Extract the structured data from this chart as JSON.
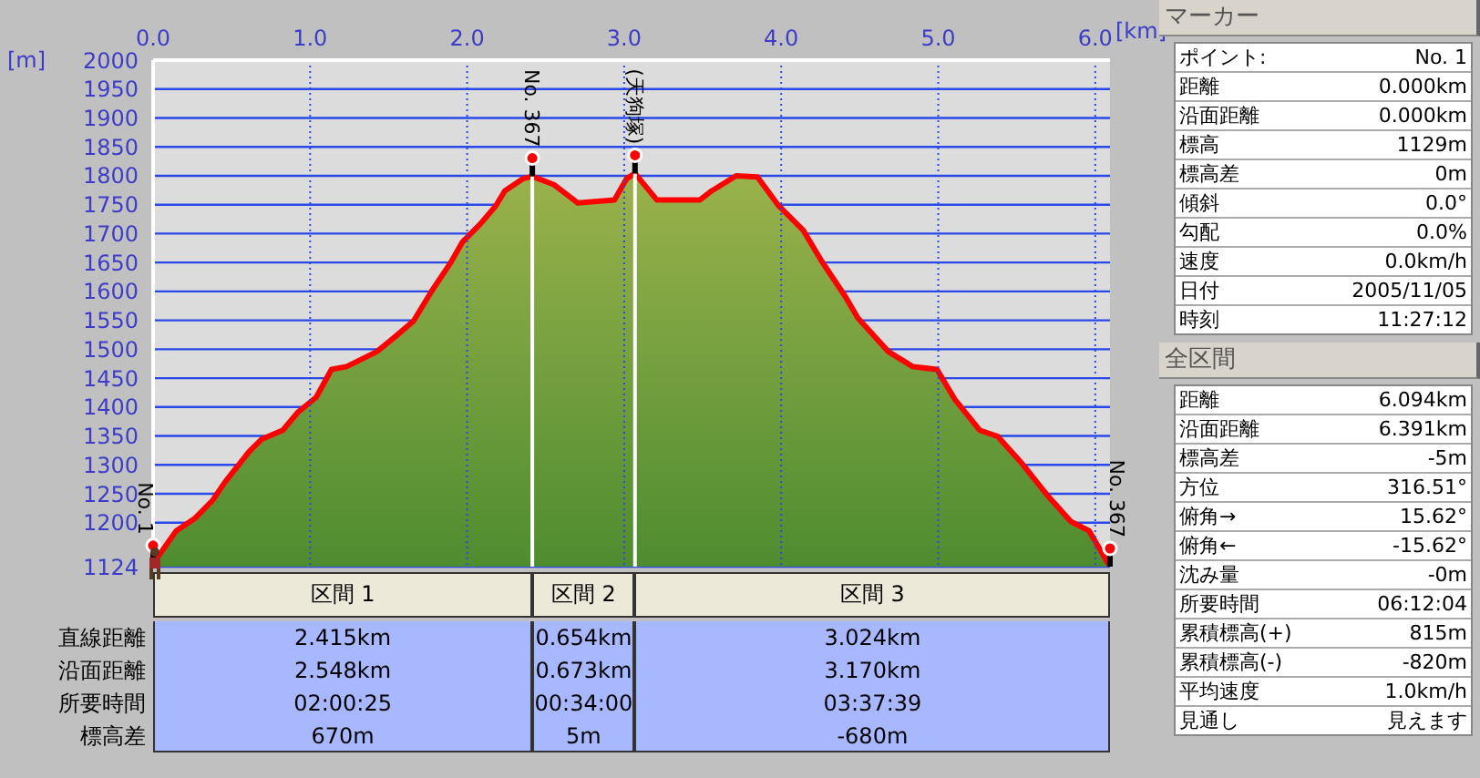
{
  "chart_data": [
    {
      "type": "area",
      "xlabel": "[km]",
      "ylabel": "[m]",
      "x": [
        0,
        0.147,
        0.264,
        0.38,
        0.457,
        0.612,
        0.69,
        0.826,
        0.922,
        1.039,
        1.136,
        1.233,
        1.426,
        1.543,
        1.659,
        1.775,
        1.891,
        1.969,
        2.085,
        2.182,
        2.24,
        2.357,
        2.415,
        2.55,
        2.628,
        2.705,
        2.938,
        3.016,
        3.069,
        3.209,
        3.481,
        3.558,
        3.713,
        3.849,
        3.984,
        4.14,
        4.256,
        4.411,
        4.488,
        4.682,
        4.837,
        4.992,
        5.109,
        5.264,
        5.38,
        5.535,
        5.69,
        5.845,
        5.961,
        6.094
      ],
      "series": [
        {
          "color": "#ff0000",
          "values": [
            1129,
            1186,
            1207,
            1239,
            1270,
            1323,
            1344,
            1360,
            1391,
            1417,
            1465,
            1470,
            1496,
            1522,
            1549,
            1601,
            1648,
            1685,
            1717,
            1748,
            1774,
            1795,
            1799,
            1785,
            1769,
            1753,
            1758,
            1795,
            1804,
            1758,
            1758,
            1774,
            1800,
            1798,
            1748,
            1706,
            1653,
            1590,
            1554,
            1496,
            1470,
            1465,
            1412,
            1360,
            1349,
            1302,
            1249,
            1202,
            1186,
            1124
          ]
        }
      ],
      "xlim": [
        0,
        6.094
      ],
      "xticks": [
        {
          "value": 0,
          "label": "0.0"
        },
        {
          "value": 1,
          "label": "1.0"
        },
        {
          "value": 2,
          "label": "2.0"
        },
        {
          "value": 3,
          "label": "3.0"
        },
        {
          "value": 4,
          "label": "4.0"
        },
        {
          "value": 5,
          "label": "5.0"
        },
        {
          "value": 6,
          "label": "6.0"
        }
      ],
      "ylim": [
        1124,
        2000
      ],
      "yticks": [
        1124,
        1200,
        1250,
        1300,
        1350,
        1400,
        1450,
        1500,
        1550,
        1600,
        1650,
        1700,
        1750,
        1800,
        1850,
        1900,
        1950,
        2000
      ],
      "grid": true,
      "marker": "none",
      "line_style": "solid",
      "ref_lines": [
        {
          "axis": "x",
          "value": 2.415,
          "label": "No. 367",
          "color": "#ffffff"
        },
        {
          "axis": "x",
          "value": 3.069,
          "label": "(天狗塚)",
          "color": "#ffffff"
        }
      ],
      "annotations": [
        {
          "text": "No. 1",
          "x": 0,
          "y": 1129
        },
        {
          "text": "No. 367",
          "x": 6.094,
          "y": 1124
        }
      ]
    },
    {
      "type": "other",
      "categories": [
        "区間 1",
        "区間 2",
        "区間 3"
      ],
      "y_categories": [
        "直線距離",
        "沿面距離",
        "所要時間",
        "標高差"
      ],
      "cell_labels": [
        [
          "2.415km",
          "0.654km",
          "3.024km"
        ],
        [
          "2.548km",
          "0.673km",
          "3.170km"
        ],
        [
          "02:00:25",
          "00:34:00",
          "03:37:39"
        ],
        [
          "670m",
          "5m",
          "-680m"
        ]
      ]
    },
    {
      "type": "other",
      "title": "マーカー",
      "y_categories": [
        "ポイント:",
        "距離",
        "沿面距離",
        "標高",
        "標高差",
        "傾斜",
        "勾配",
        "速度",
        "日付",
        "時刻"
      ],
      "cell_labels": [
        [
          "No. 1"
        ],
        [
          "0.000km"
        ],
        [
          "0.000km"
        ],
        [
          "1129m"
        ],
        [
          "0m"
        ],
        [
          "0.0°"
        ],
        [
          "0.0%"
        ],
        [
          "0.0km/h"
        ],
        [
          "2005/11/05"
        ],
        [
          "11:27:12"
        ]
      ]
    },
    {
      "type": "other",
      "title": "全区間",
      "y_categories": [
        "距離",
        "沿面距離",
        "標高差",
        "方位",
        "俯角→",
        "俯角←",
        "沈み量",
        "所要時間",
        "累積標高(+)",
        "累積標高(-)",
        "平均速度",
        "見通し"
      ],
      "cell_labels": [
        [
          "6.094km"
        ],
        [
          "6.391km"
        ],
        [
          "-5m"
        ],
        [
          "316.51°"
        ],
        [
          "15.62°"
        ],
        [
          "-15.62°"
        ],
        [
          "-0m"
        ],
        [
          "06:12:04"
        ],
        [
          "815m"
        ],
        [
          "-820m"
        ],
        [
          "1.0km/h"
        ],
        [
          "見えます"
        ]
      ]
    }
  ]
}
